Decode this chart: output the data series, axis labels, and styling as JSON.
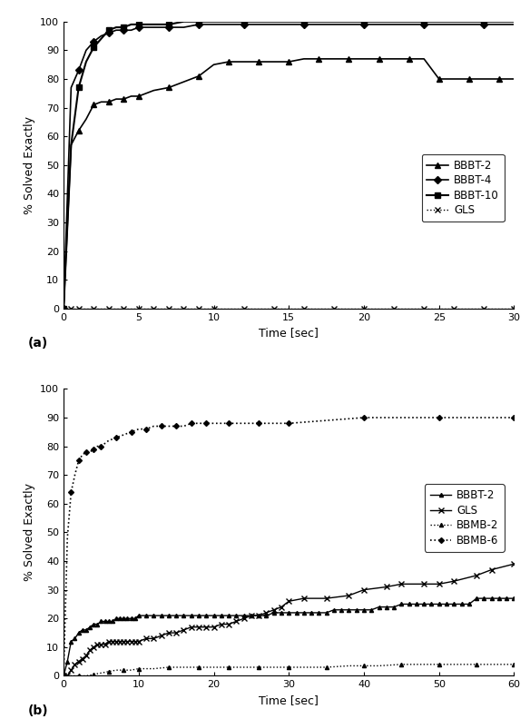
{
  "fig_width": 5.84,
  "fig_height": 7.92,
  "dpi": 100,
  "plot_a": {
    "xlabel": "Time [sec]",
    "ylabel": "% Solved Exactly",
    "xlim": [
      0,
      30
    ],
    "ylim": [
      0,
      100
    ],
    "xticks": [
      0,
      5,
      10,
      15,
      20,
      25,
      30
    ],
    "yticks": [
      0,
      10,
      20,
      30,
      40,
      50,
      60,
      70,
      80,
      90,
      100
    ],
    "label_a": "(a)",
    "series": [
      {
        "label": "BBBT-2",
        "style": "-",
        "marker": "^",
        "markersize": 4,
        "color": "#000000",
        "linewidth": 1.2,
        "x": [
          0,
          0.5,
          1,
          1.5,
          2,
          2.5,
          3,
          3.5,
          4,
          4.5,
          5,
          6,
          7,
          8,
          9,
          10,
          11,
          12,
          13,
          14,
          15,
          16,
          17,
          18,
          19,
          20,
          21,
          22,
          23,
          24,
          25,
          26,
          27,
          28,
          29,
          30
        ],
        "y": [
          0,
          57,
          62,
          66,
          71,
          72,
          72,
          73,
          73,
          74,
          74,
          76,
          77,
          79,
          81,
          85,
          86,
          86,
          86,
          86,
          86,
          87,
          87,
          87,
          87,
          87,
          87,
          87,
          87,
          87,
          80,
          80,
          80,
          80,
          80,
          80
        ]
      },
      {
        "label": "BBBT-4",
        "style": "-",
        "marker": "D",
        "markersize": 4,
        "color": "#000000",
        "linewidth": 1.2,
        "x": [
          0,
          0.5,
          1,
          1.5,
          2,
          2.5,
          3,
          3.5,
          4,
          4.5,
          5,
          6,
          7,
          8,
          9,
          10,
          12,
          14,
          16,
          18,
          20,
          22,
          24,
          26,
          28,
          30
        ],
        "y": [
          0,
          77,
          83,
          90,
          93,
          95,
          96,
          97,
          97,
          97,
          98,
          98,
          98,
          98,
          99,
          99,
          99,
          99,
          99,
          99,
          99,
          99,
          99,
          99,
          99,
          99
        ]
      },
      {
        "label": "BBBT-10",
        "style": "-",
        "marker": "s",
        "markersize": 4,
        "color": "#000000",
        "linewidth": 1.5,
        "x": [
          0,
          0.5,
          1,
          1.5,
          2,
          2.5,
          3,
          3.5,
          4,
          4.5,
          5,
          6,
          7,
          8,
          9,
          10,
          12,
          14,
          16,
          18,
          20,
          22,
          24,
          26,
          28,
          30
        ],
        "y": [
          0,
          57,
          77,
          86,
          91,
          94,
          97,
          98,
          98,
          99,
          99,
          99,
          99,
          100,
          100,
          100,
          100,
          100,
          100,
          100,
          100,
          100,
          100,
          100,
          100,
          100
        ]
      },
      {
        "label": "GLS",
        "style": ":",
        "marker": "x",
        "markersize": 4,
        "color": "#000000",
        "linewidth": 1.0,
        "x": [
          0,
          0.5,
          1,
          2,
          3,
          4,
          5,
          6,
          7,
          8,
          9,
          10,
          12,
          14,
          16,
          18,
          20,
          22,
          24,
          26,
          28,
          30
        ],
        "y": [
          0,
          0,
          0,
          0,
          0,
          0,
          0,
          0,
          0,
          0,
          0,
          0,
          0,
          0,
          0,
          0,
          0,
          0,
          0,
          0,
          0,
          0
        ]
      }
    ]
  },
  "plot_b": {
    "xlabel": "Time [sec]",
    "ylabel": "% Solved Exactly",
    "xlim": [
      0,
      60
    ],
    "ylim": [
      0,
      100
    ],
    "xticks": [
      0,
      10,
      20,
      30,
      40,
      50,
      60
    ],
    "yticks": [
      0,
      10,
      20,
      30,
      40,
      50,
      60,
      70,
      80,
      90,
      100
    ],
    "label_b": "(b)",
    "series": [
      {
        "label": "BBBT-2",
        "style": "-",
        "marker": "^",
        "markersize": 3,
        "color": "#000000",
        "linewidth": 1.0,
        "x": [
          0,
          0.5,
          1,
          1.5,
          2,
          2.5,
          3,
          3.5,
          4,
          4.5,
          5,
          5.5,
          6,
          6.5,
          7,
          7.5,
          8,
          8.5,
          9,
          9.5,
          10,
          11,
          12,
          13,
          14,
          15,
          16,
          17,
          18,
          19,
          20,
          21,
          22,
          23,
          24,
          25,
          26,
          27,
          28,
          29,
          30,
          31,
          32,
          33,
          34,
          35,
          36,
          37,
          38,
          39,
          40,
          41,
          42,
          43,
          44,
          45,
          46,
          47,
          48,
          49,
          50,
          51,
          52,
          53,
          54,
          55,
          56,
          57,
          58,
          59,
          60
        ],
        "y": [
          0,
          5,
          12,
          13,
          15,
          16,
          16,
          17,
          18,
          18,
          19,
          19,
          19,
          19,
          20,
          20,
          20,
          20,
          20,
          20,
          21,
          21,
          21,
          21,
          21,
          21,
          21,
          21,
          21,
          21,
          21,
          21,
          21,
          21,
          21,
          21,
          21,
          21,
          22,
          22,
          22,
          22,
          22,
          22,
          22,
          22,
          23,
          23,
          23,
          23,
          23,
          23,
          24,
          24,
          24,
          25,
          25,
          25,
          25,
          25,
          25,
          25,
          25,
          25,
          25,
          27,
          27,
          27,
          27,
          27,
          27
        ]
      },
      {
        "label": "GLS",
        "style": "-",
        "marker": "x",
        "markersize": 4,
        "color": "#000000",
        "linewidth": 1.0,
        "x": [
          0,
          0.5,
          1,
          1.5,
          2,
          2.5,
          3,
          3.5,
          4,
          4.5,
          5,
          5.5,
          6,
          6.5,
          7,
          7.5,
          8,
          8.5,
          9,
          9.5,
          10,
          11,
          12,
          13,
          14,
          15,
          16,
          17,
          18,
          19,
          20,
          21,
          22,
          23,
          24,
          25,
          26,
          27,
          28,
          29,
          30,
          32,
          35,
          38,
          40,
          43,
          45,
          48,
          50,
          52,
          55,
          57,
          60
        ],
        "y": [
          0,
          0,
          2,
          4,
          5,
          6,
          7,
          9,
          10,
          11,
          11,
          11,
          12,
          12,
          12,
          12,
          12,
          12,
          12,
          12,
          12,
          13,
          13,
          14,
          15,
          15,
          16,
          17,
          17,
          17,
          17,
          18,
          18,
          19,
          20,
          21,
          21,
          22,
          23,
          24,
          26,
          27,
          27,
          28,
          30,
          31,
          32,
          32,
          32,
          33,
          35,
          37,
          39
        ]
      },
      {
        "label": "BBMB-2",
        "style": ":",
        "marker": "^",
        "markersize": 3,
        "color": "#000000",
        "linewidth": 1.0,
        "x": [
          0,
          1,
          2,
          3,
          4,
          5,
          6,
          7,
          8,
          9,
          10,
          12,
          14,
          16,
          18,
          20,
          22,
          24,
          26,
          28,
          30,
          32,
          35,
          38,
          40,
          42,
          45,
          48,
          50,
          52,
          55,
          57,
          60
        ],
        "y": [
          0,
          0,
          0,
          0,
          0.5,
          1,
          1.5,
          2,
          2,
          2,
          2.5,
          2.5,
          3,
          3,
          3,
          3,
          3,
          3,
          3,
          3,
          3,
          3,
          3,
          3.5,
          3.5,
          3.5,
          4,
          4,
          4,
          4,
          4,
          4,
          4
        ]
      },
      {
        "label": "BBMB-6",
        "style": ":",
        "marker": "D",
        "markersize": 3,
        "color": "#000000",
        "linewidth": 1.2,
        "x": [
          0,
          0.5,
          1,
          1.5,
          2,
          2.5,
          3,
          3.5,
          4,
          4.5,
          5,
          6,
          7,
          8,
          9,
          10,
          11,
          12,
          13,
          14,
          15,
          16,
          17,
          18,
          19,
          20,
          22,
          24,
          26,
          28,
          30,
          35,
          40,
          45,
          50,
          55,
          60
        ],
        "y": [
          0,
          48,
          64,
          70,
          75,
          77,
          78,
          78,
          79,
          80,
          80,
          82,
          83,
          84,
          85,
          86,
          86,
          87,
          87,
          87,
          87,
          87,
          88,
          88,
          88,
          88,
          88,
          88,
          88,
          88,
          88,
          89,
          90,
          90,
          90,
          90,
          90
        ]
      }
    ]
  }
}
